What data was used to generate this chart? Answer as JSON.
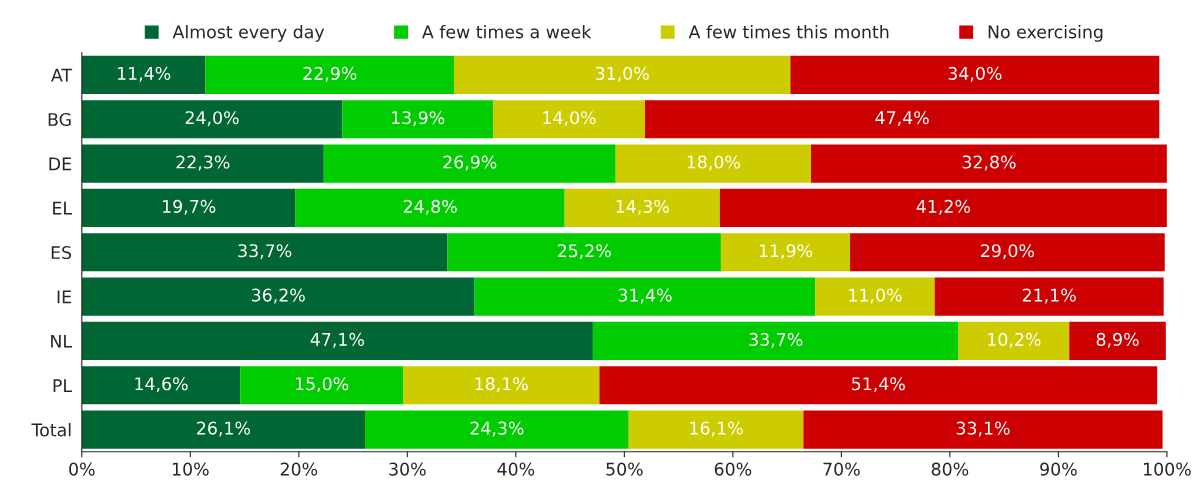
{
  "chart_data": {
    "type": "bar",
    "orientation": "horizontal",
    "stacked": true,
    "legend": "top",
    "categories": [
      "AT",
      "BG",
      "DE",
      "EL",
      "ES",
      "IE",
      "NL",
      "PL",
      "Total"
    ],
    "series": [
      {
        "name": "Almost every day",
        "color": "#006633",
        "values": [
          11.4,
          24.0,
          22.3,
          19.7,
          33.7,
          36.2,
          47.1,
          14.6,
          26.1
        ],
        "value_labels": [
          "11,4%",
          "24,0%",
          "22,3%",
          "19,7%",
          "33,7%",
          "36,2%",
          "47,1%",
          "14,6%",
          "26,1%"
        ]
      },
      {
        "name": "A few times a week",
        "color": "#00cc00",
        "values": [
          22.9,
          13.9,
          26.9,
          24.8,
          25.2,
          31.4,
          33.7,
          15.0,
          24.3
        ],
        "value_labels": [
          "22,9%",
          "13,9%",
          "26,9%",
          "24,8%",
          "25,2%",
          "31,4%",
          "33,7%",
          "15,0%",
          "24,3%"
        ]
      },
      {
        "name": "A few times this month",
        "color": "#cccc00",
        "values": [
          31.0,
          14.0,
          18.0,
          14.3,
          11.9,
          11.0,
          10.2,
          18.1,
          16.1
        ],
        "value_labels": [
          "31,0%",
          "14,0%",
          "18,0%",
          "14,3%",
          "11,9%",
          "11,0%",
          "10,2%",
          "18,1%",
          "16,1%"
        ]
      },
      {
        "name": "No exercising",
        "color": "#cc0000",
        "values": [
          34.0,
          47.4,
          32.8,
          41.2,
          29.0,
          21.1,
          8.9,
          51.4,
          33.1
        ],
        "value_labels": [
          "34,0%",
          "47,4%",
          "32,8%",
          "41,2%",
          "29,0%",
          "21,1%",
          "8,9%",
          "51,4%",
          "33,1%"
        ]
      }
    ],
    "xlim": [
      0,
      100
    ],
    "xticks": [
      {
        "value": 0,
        "label": "0%"
      },
      {
        "value": 10,
        "label": "10%"
      },
      {
        "value": 20,
        "label": "20%"
      },
      {
        "value": 30,
        "label": "30%"
      },
      {
        "value": 40,
        "label": "40%"
      },
      {
        "value": 50,
        "label": "50%"
      },
      {
        "value": 60,
        "label": "60%"
      },
      {
        "value": 70,
        "label": "70%"
      },
      {
        "value": 80,
        "label": "80%"
      },
      {
        "value": 90,
        "label": "90%"
      },
      {
        "value": 100,
        "label": "100%"
      }
    ],
    "grid": false
  }
}
